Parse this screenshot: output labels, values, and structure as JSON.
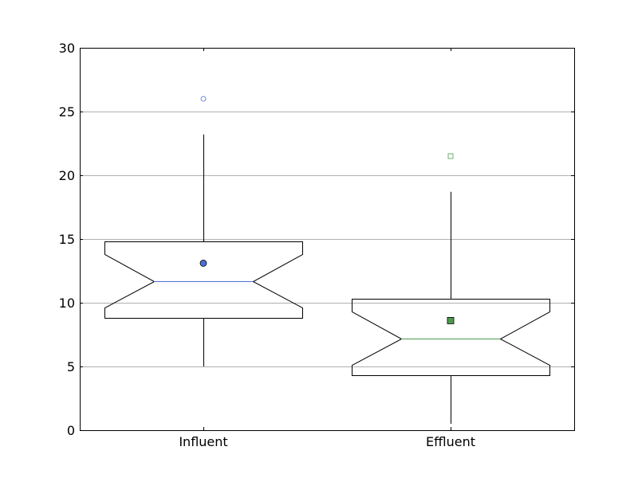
{
  "chart_data": {
    "type": "boxplot",
    "title": "",
    "xlabel": "",
    "ylabel": "",
    "ylim": [
      0,
      30
    ],
    "yticks": [
      0,
      5,
      10,
      15,
      20,
      25,
      30
    ],
    "grid": "horizontal",
    "categories": [
      "Influent",
      "Effluent"
    ],
    "boxes": [
      {
        "name": "Influent",
        "whisker_low": 5.0,
        "q1": 8.8,
        "notch_low": 9.6,
        "median": 11.7,
        "notch_high": 13.8,
        "q3": 14.8,
        "whisker_high": 23.2,
        "mean": 13.1,
        "mean_marker": "circle",
        "outliers": [
          26.0
        ],
        "outlier_marker": "circle",
        "color": "#4a6fd4",
        "fill_color": "#4a6fd4"
      },
      {
        "name": "Effluent",
        "whisker_low": 0.5,
        "q1": 4.3,
        "notch_low": 5.1,
        "median": 7.2,
        "notch_high": 9.3,
        "q3": 10.3,
        "whisker_high": 18.7,
        "mean": 8.6,
        "mean_marker": "square",
        "outliers": [
          21.5
        ],
        "outlier_marker": "square",
        "color": "#4d9a4d",
        "fill_color": "#4d9a4d"
      }
    ]
  }
}
